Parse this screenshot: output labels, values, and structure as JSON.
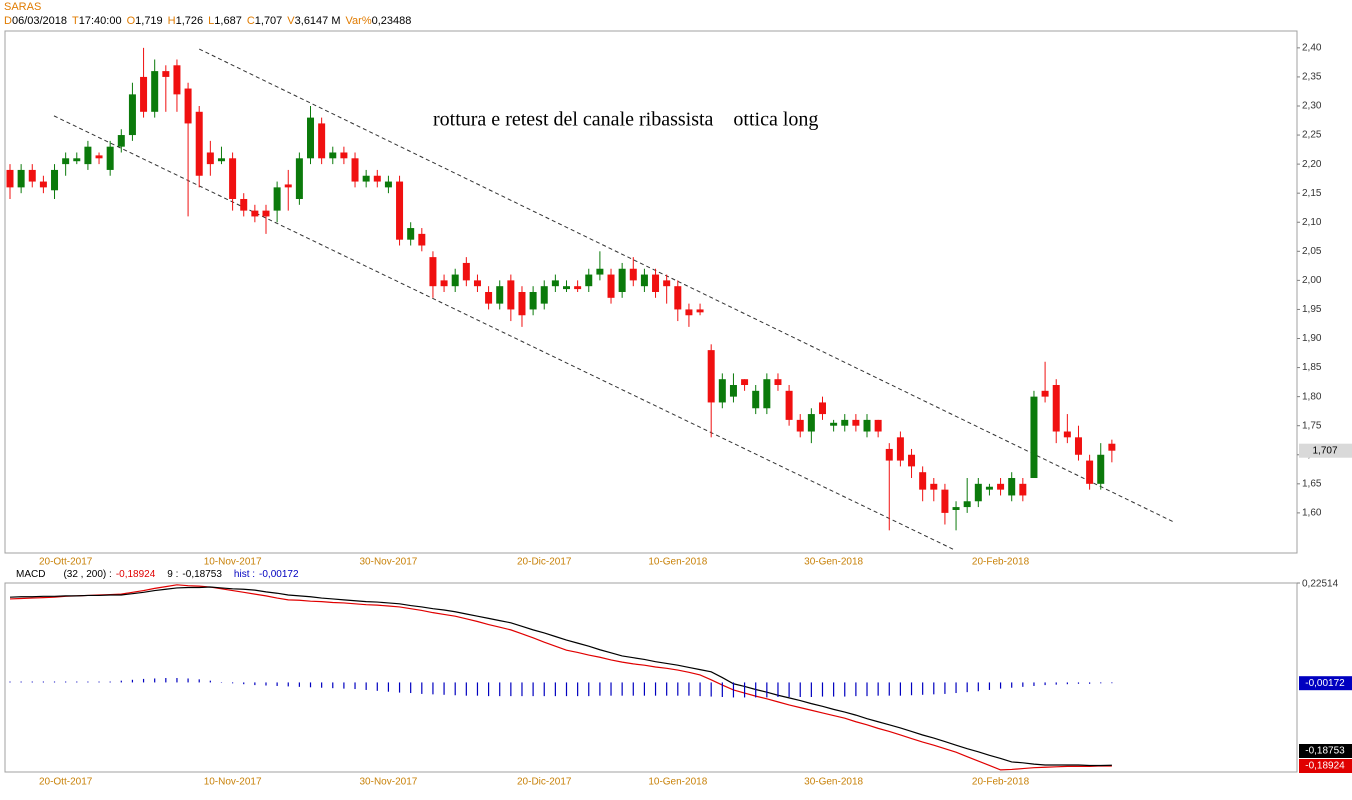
{
  "header": {
    "symbol": "SARAS",
    "fields": [
      {
        "key": "D",
        "value": "06/03/2018"
      },
      {
        "key": "T",
        "value": "17:40:00"
      },
      {
        "key": "O",
        "value": "1,719"
      },
      {
        "key": "H",
        "value": "1,726"
      },
      {
        "key": "L",
        "value": "1,687"
      },
      {
        "key": "C",
        "value": "1,707"
      },
      {
        "key": "V",
        "value": "3,6147 M"
      },
      {
        "key": "Var%",
        "value": "0,23488"
      }
    ]
  },
  "chart_data": [
    {
      "type": "candlestick",
      "categories": [
        null,
        null,
        null,
        null,
        null,
        "20-Ott-2017",
        null,
        null,
        null,
        null,
        null,
        null,
        null,
        null,
        null,
        null,
        null,
        null,
        null,
        null,
        "10-Nov-2017",
        null,
        null,
        null,
        null,
        null,
        null,
        null,
        null,
        null,
        null,
        null,
        null,
        null,
        "30-Nov-2017",
        null,
        null,
        null,
        null,
        null,
        null,
        null,
        null,
        null,
        null,
        null,
        null,
        null,
        "20-Dic-2017",
        null,
        null,
        null,
        null,
        null,
        null,
        null,
        null,
        null,
        null,
        null,
        "10-Gen-2018",
        null,
        null,
        null,
        null,
        null,
        null,
        null,
        null,
        null,
        null,
        null,
        null,
        null,
        "30-Gen-2018",
        null,
        null,
        null,
        null,
        null,
        null,
        null,
        null,
        null,
        null,
        null,
        null,
        null,
        null,
        "20-Feb-2018",
        null,
        null,
        null,
        null,
        null,
        null,
        null,
        null,
        null,
        null
      ],
      "open": [
        2.19,
        2.16,
        2.19,
        2.17,
        2.155,
        2.2,
        2.205,
        2.2,
        2.215,
        2.19,
        2.23,
        2.25,
        2.35,
        2.29,
        2.36,
        2.37,
        2.33,
        2.29,
        2.22,
        2.205,
        2.21,
        2.14,
        2.12,
        2.12,
        2.12,
        2.165,
        2.14,
        2.21,
        2.27,
        2.21,
        2.22,
        2.21,
        2.17,
        2.18,
        2.16,
        2.17,
        2.07,
        2.08,
        2.04,
        2.0,
        1.99,
        2.03,
        2.0,
        1.98,
        1.96,
        2.0,
        1.98,
        1.95,
        1.96,
        1.99,
        1.985,
        1.99,
        1.99,
        2.01,
        2.01,
        1.98,
        2.02,
        1.99,
        2.01,
        2.0,
        1.99,
        1.95,
        1.95,
        1.88,
        1.79,
        1.8,
        1.83,
        1.78,
        1.78,
        1.83,
        1.81,
        1.76,
        1.74,
        1.79,
        1.75,
        1.75,
        1.76,
        1.74,
        1.76,
        1.71,
        1.73,
        1.7,
        1.67,
        1.65,
        1.64,
        1.605,
        1.61,
        1.62,
        1.64,
        1.65,
        1.63,
        1.65,
        1.66,
        1.81,
        1.82,
        1.74,
        1.73,
        1.69,
        1.65,
        1.719
      ],
      "high": [
        2.2,
        2.2,
        2.2,
        2.18,
        2.2,
        2.22,
        2.22,
        2.24,
        2.22,
        2.24,
        2.26,
        2.34,
        2.4,
        2.38,
        2.37,
        2.38,
        2.34,
        2.3,
        2.24,
        2.23,
        2.22,
        2.15,
        2.13,
        2.13,
        2.17,
        2.19,
        2.22,
        2.3,
        2.28,
        2.23,
        2.23,
        2.22,
        2.19,
        2.19,
        2.18,
        2.18,
        2.1,
        2.09,
        2.05,
        2.01,
        2.02,
        2.04,
        2.01,
        1.99,
        2.0,
        2.01,
        1.99,
        1.99,
        2.0,
        2.01,
        2.0,
        2.0,
        2.02,
        2.05,
        2.02,
        2.03,
        2.04,
        2.02,
        2.02,
        2.01,
        2.0,
        1.96,
        1.96,
        1.89,
        1.84,
        1.84,
        1.83,
        1.82,
        1.84,
        1.84,
        1.82,
        1.77,
        1.78,
        1.8,
        1.76,
        1.77,
        1.77,
        1.77,
        1.76,
        1.72,
        1.74,
        1.71,
        1.68,
        1.66,
        1.65,
        1.62,
        1.66,
        1.66,
        1.65,
        1.66,
        1.67,
        1.66,
        1.81,
        1.86,
        1.83,
        1.77,
        1.75,
        1.7,
        1.72,
        1.726
      ],
      "low": [
        2.14,
        2.15,
        2.16,
        2.15,
        2.14,
        2.18,
        2.2,
        2.19,
        2.2,
        2.18,
        2.22,
        2.24,
        2.28,
        2.28,
        2.29,
        2.29,
        2.11,
        2.16,
        2.18,
        2.2,
        2.12,
        2.11,
        2.1,
        2.08,
        2.1,
        2.12,
        2.13,
        2.2,
        2.2,
        2.2,
        2.2,
        2.16,
        2.16,
        2.16,
        2.15,
        2.06,
        2.06,
        2.05,
        1.97,
        1.98,
        1.98,
        1.99,
        1.98,
        1.95,
        1.95,
        1.93,
        1.92,
        1.94,
        1.95,
        1.98,
        1.98,
        1.98,
        1.98,
        2.0,
        1.96,
        1.97,
        1.99,
        1.98,
        1.97,
        1.96,
        1.93,
        1.92,
        1.94,
        1.73,
        1.78,
        1.79,
        1.81,
        1.77,
        1.77,
        1.81,
        1.75,
        1.73,
        1.72,
        1.76,
        1.74,
        1.74,
        1.74,
        1.73,
        1.73,
        1.57,
        1.68,
        1.66,
        1.62,
        1.62,
        1.58,
        1.57,
        1.6,
        1.61,
        1.63,
        1.63,
        1.62,
        1.62,
        1.66,
        1.79,
        1.72,
        1.72,
        1.69,
        1.64,
        1.64,
        1.687
      ],
      "close": [
        2.16,
        2.19,
        2.17,
        2.16,
        2.19,
        2.21,
        2.21,
        2.23,
        2.21,
        2.23,
        2.25,
        2.32,
        2.29,
        2.36,
        2.35,
        2.32,
        2.27,
        2.18,
        2.2,
        2.21,
        2.14,
        2.12,
        2.11,
        2.11,
        2.16,
        2.16,
        2.21,
        2.28,
        2.21,
        2.22,
        2.21,
        2.17,
        2.18,
        2.17,
        2.17,
        2.07,
        2.09,
        2.06,
        1.99,
        1.99,
        2.01,
        2.0,
        1.99,
        1.96,
        1.99,
        1.95,
        1.94,
        1.98,
        1.99,
        2.0,
        1.99,
        1.985,
        2.01,
        2.02,
        1.97,
        2.02,
        2.0,
        2.01,
        1.98,
        1.99,
        1.95,
        1.94,
        1.945,
        1.79,
        1.83,
        1.82,
        1.82,
        1.81,
        1.83,
        1.82,
        1.76,
        1.74,
        1.77,
        1.77,
        1.755,
        1.76,
        1.75,
        1.76,
        1.74,
        1.69,
        1.69,
        1.68,
        1.64,
        1.64,
        1.6,
        1.61,
        1.62,
        1.65,
        1.645,
        1.64,
        1.66,
        1.63,
        1.8,
        1.8,
        1.74,
        1.73,
        1.7,
        1.65,
        1.7,
        1.707
      ],
      "up_color": "#0b7a0b",
      "down_color": "#f01010",
      "ylim": [
        1.531,
        2.429
      ],
      "yticks": [
        {
          "value": 1.6,
          "label": "1,60"
        },
        {
          "value": 1.65,
          "label": "1,65"
        },
        {
          "value": 1.7,
          "label": "1,70"
        },
        {
          "value": 1.75,
          "label": "1,75"
        },
        {
          "value": 1.8,
          "label": "1,80"
        },
        {
          "value": 1.85,
          "label": "1,85"
        },
        {
          "value": 1.9,
          "label": "1,90"
        },
        {
          "value": 1.95,
          "label": "1,95"
        },
        {
          "value": 2.0,
          "label": "2,00"
        },
        {
          "value": 2.05,
          "label": "2,05"
        },
        {
          "value": 2.1,
          "label": "2,10"
        },
        {
          "value": 2.15,
          "label": "2,15"
        },
        {
          "value": 2.2,
          "label": "2,20"
        },
        {
          "value": 2.25,
          "label": "2,25"
        },
        {
          "value": 2.3,
          "label": "2,30"
        },
        {
          "value": 2.35,
          "label": "2,35"
        },
        {
          "value": 2.4,
          "label": "2,40"
        }
      ],
      "last_label": "1,707",
      "annotation": "rottura e retest del canale ribassista    ottica long",
      "trendlines": [
        {
          "x": [
            17,
            104.7
          ],
          "y": [
            2.398,
            1.583
          ]
        },
        {
          "x": [
            3.95,
            84.9
          ],
          "y": [
            2.283,
            1.536
          ]
        }
      ]
    },
    {
      "type": "macd",
      "title": "MACD",
      "ylim": [
        -0.2028,
        0.22514
      ],
      "yticks": [
        {
          "value": 0.22514,
          "label": "0,22514"
        }
      ],
      "series": [
        {
          "name": "(32 , 200) :",
          "color": "#e00000",
          "last_label": "-0,18924",
          "values": [
            0.189,
            0.19,
            0.191,
            0.192,
            0.193,
            0.195,
            0.196,
            0.197,
            0.198,
            0.199,
            0.2,
            0.204,
            0.208,
            0.213,
            0.217,
            0.221,
            0.219,
            0.218,
            0.216,
            0.212,
            0.208,
            0.204,
            0.2,
            0.196,
            0.191,
            0.187,
            0.186,
            0.184,
            0.183,
            0.181,
            0.18,
            0.178,
            0.176,
            0.175,
            0.173,
            0.171,
            0.167,
            0.163,
            0.158,
            0.154,
            0.15,
            0.144,
            0.138,
            0.131,
            0.125,
            0.119,
            0.11,
            0.101,
            0.091,
            0.082,
            0.073,
            0.068,
            0.062,
            0.057,
            0.051,
            0.046,
            0.042,
            0.039,
            0.035,
            0.032,
            0.028,
            0.023,
            0.017,
            0.006,
            -0.006,
            -0.017,
            -0.024,
            -0.031,
            -0.037,
            -0.044,
            -0.051,
            -0.057,
            -0.063,
            -0.069,
            -0.075,
            -0.081,
            -0.089,
            -0.096,
            -0.104,
            -0.111,
            -0.119,
            -0.127,
            -0.135,
            -0.142,
            -0.15,
            -0.158,
            -0.168,
            -0.178,
            -0.188,
            -0.198,
            -0.197,
            -0.195,
            -0.193,
            -0.192,
            -0.191,
            -0.19,
            -0.19,
            -0.19,
            -0.189,
            -0.18924
          ]
        },
        {
          "name": "9 :",
          "color": "#000000",
          "last_label": "-0,18753",
          "values": [
            0.193,
            0.194,
            0.194,
            0.195,
            0.195,
            0.196,
            0.196,
            0.197,
            0.197,
            0.198,
            0.198,
            0.201,
            0.204,
            0.208,
            0.211,
            0.214,
            0.215,
            0.215,
            0.216,
            0.214,
            0.212,
            0.211,
            0.209,
            0.205,
            0.202,
            0.198,
            0.196,
            0.194,
            0.191,
            0.189,
            0.187,
            0.185,
            0.183,
            0.182,
            0.18,
            0.178,
            0.174,
            0.171,
            0.167,
            0.164,
            0.16,
            0.155,
            0.15,
            0.145,
            0.14,
            0.135,
            0.127,
            0.119,
            0.112,
            0.104,
            0.096,
            0.089,
            0.082,
            0.074,
            0.067,
            0.06,
            0.056,
            0.052,
            0.047,
            0.043,
            0.039,
            0.034,
            0.029,
            0.024,
            0.011,
            -0.003,
            -0.009,
            -0.016,
            -0.022,
            -0.029,
            -0.035,
            -0.041,
            -0.048,
            -0.054,
            -0.061,
            -0.067,
            -0.074,
            -0.082,
            -0.089,
            -0.096,
            -0.103,
            -0.111,
            -0.119,
            -0.126,
            -0.134,
            -0.142,
            -0.15,
            -0.157,
            -0.165,
            -0.172,
            -0.18,
            -0.182,
            -0.185,
            -0.187,
            -0.187,
            -0.187,
            -0.187,
            -0.188,
            -0.188,
            -0.18753
          ]
        },
        {
          "name": "hist :",
          "color": "#0000c0",
          "style": "histogram",
          "last_label": "-0,00172",
          "values": [
            0.002,
            0.002,
            0.002,
            0.002,
            0.002,
            0.002,
            0.002,
            0.002,
            0.002,
            0.002,
            0.004,
            0.006,
            0.008,
            0.009,
            0.01,
            0.01,
            0.009,
            0.007,
            0.004,
            0.001,
            -0.002,
            -0.004,
            -0.006,
            -0.007,
            -0.008,
            -0.009,
            -0.01,
            -0.011,
            -0.012,
            -0.013,
            -0.014,
            -0.015,
            -0.017,
            -0.019,
            -0.021,
            -0.023,
            -0.024,
            -0.026,
            -0.027,
            -0.028,
            -0.029,
            -0.03,
            -0.03,
            -0.031,
            -0.031,
            -0.031,
            -0.031,
            -0.031,
            -0.031,
            -0.031,
            -0.031,
            -0.031,
            -0.031,
            -0.03,
            -0.03,
            -0.03,
            -0.03,
            -0.03,
            -0.03,
            -0.03,
            -0.03,
            -0.03,
            -0.031,
            -0.032,
            -0.033,
            -0.034,
            -0.034,
            -0.034,
            -0.034,
            -0.033,
            -0.033,
            -0.033,
            -0.033,
            -0.032,
            -0.032,
            -0.032,
            -0.031,
            -0.031,
            -0.03,
            -0.03,
            -0.03,
            -0.029,
            -0.028,
            -0.027,
            -0.026,
            -0.024,
            -0.022,
            -0.02,
            -0.017,
            -0.014,
            -0.012,
            -0.01,
            -0.008,
            -0.006,
            -0.005,
            -0.004,
            -0.003,
            -0.003,
            -0.002,
            -0.00172
          ]
        }
      ]
    }
  ]
}
